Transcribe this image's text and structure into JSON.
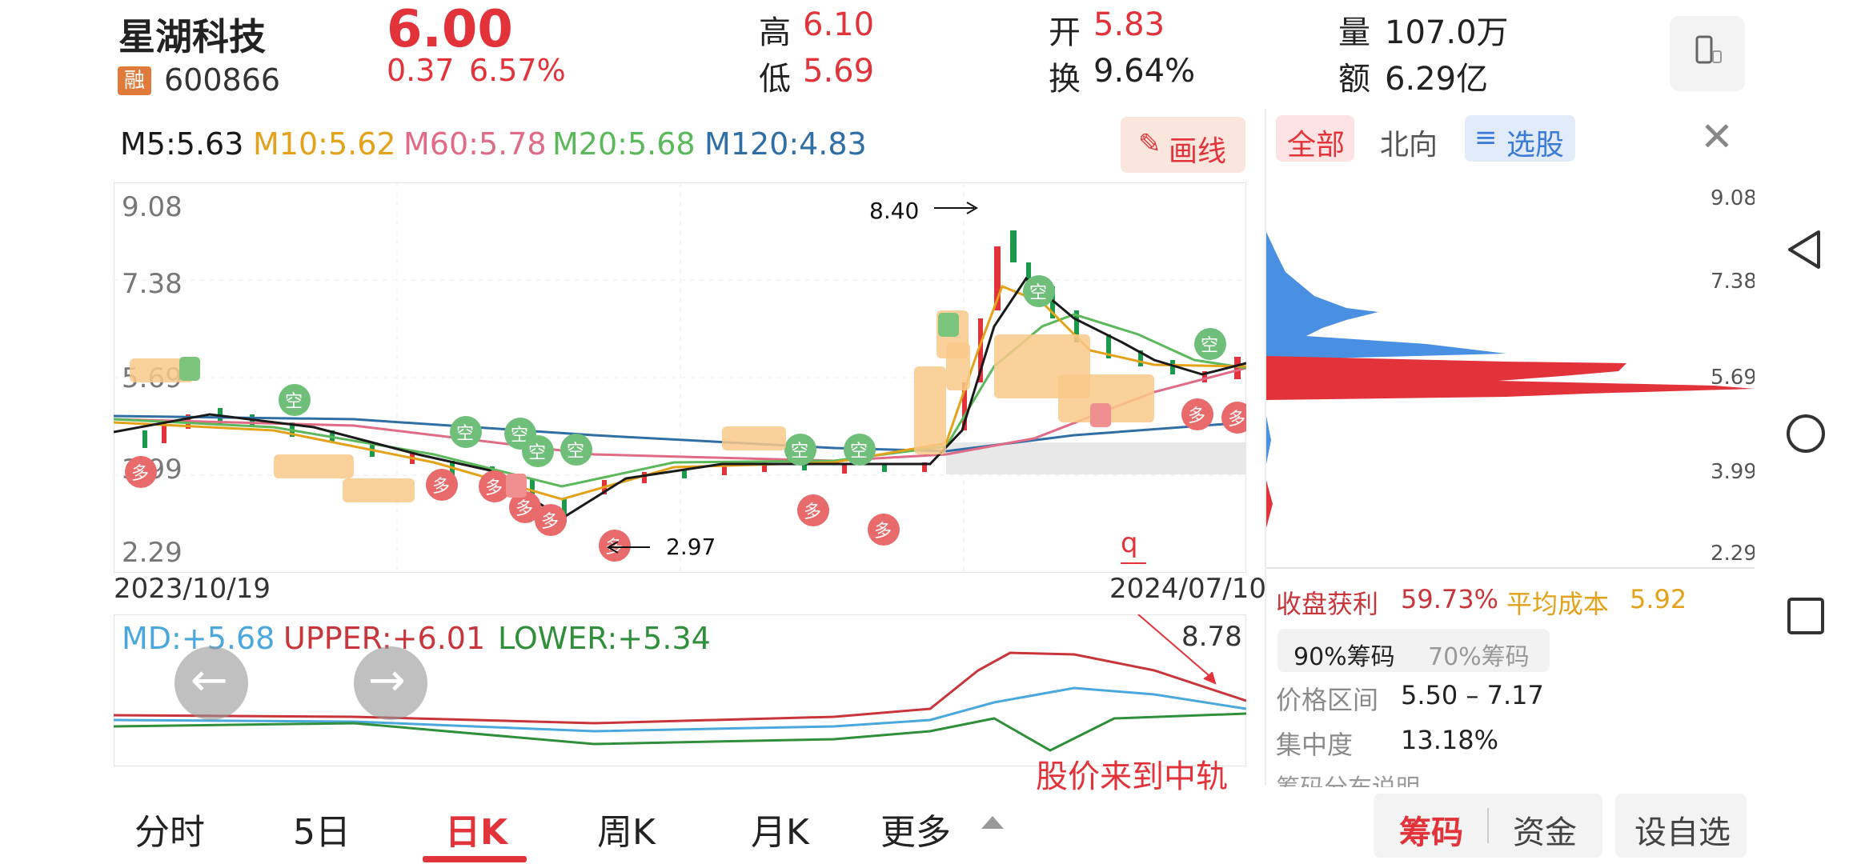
{
  "stock": {
    "name": "星湖科技",
    "badge": "融",
    "code": "600866",
    "price": "6.00",
    "change": "0.37",
    "change_pct": "6.57%"
  },
  "quote": {
    "high_label": "高",
    "high": "6.10",
    "low_label": "低",
    "low": "5.69",
    "open_label": "开",
    "open": "5.83",
    "turnover_label": "换",
    "turnover": "9.64%",
    "volume_label": "量",
    "volume": "107.0万",
    "amount_label": "额",
    "amount": "6.29亿"
  },
  "ma": {
    "m5": "M5:5.63",
    "m10": "M10:5.62",
    "m60": "M60:5.78",
    "m20": "M20:5.68",
    "m120": "M120:4.83"
  },
  "draw_button": "画线",
  "chart": {
    "y_labels": [
      "9.08",
      "7.38",
      "5.69",
      "3.99",
      "2.29"
    ],
    "date_start": "2023/10/19",
    "date_end": "2024/07/10",
    "annot_high": "8.40",
    "annot_low": "2.97",
    "annot_q": "q"
  },
  "boll": {
    "md": "MD:+5.68",
    "upper": "UPPER:+6.01",
    "lower": "LOWER:+5.34",
    "max_label": "8.78",
    "note": "股价来到中轨"
  },
  "right_panel": {
    "tabs": [
      "全部",
      "北向",
      "选股"
    ],
    "y_labels": [
      "9.08",
      "7.38",
      "5.69",
      "3.99",
      "2.29"
    ],
    "profit_label": "收盘获利",
    "profit_value": "59.73%",
    "avg_cost_label": "平均成本",
    "avg_cost_value": "5.92",
    "chip_tabs": [
      "90%筹码",
      "70%筹码"
    ],
    "price_range_label": "价格区间",
    "price_range_value": "5.50 – 7.17",
    "concentration_label": "集中度",
    "concentration_value": "13.18%",
    "explain_label": "筹码分布说明"
  },
  "bottom_tabs": [
    "分时",
    "5日",
    "日K",
    "周K",
    "月K",
    "更多"
  ],
  "bottom_right": {
    "chip": "筹码",
    "fund": "资金",
    "watch": "设自选"
  },
  "chart_data": {
    "type": "candlestick",
    "x_range": [
      "2023/10/19",
      "2024/07/10"
    ],
    "y_ticks": [
      9.08,
      7.38,
      5.69,
      3.99,
      2.29
    ],
    "ylim": [
      2.29,
      9.08
    ],
    "series": [
      {
        "name": "M5",
        "value": 5.63,
        "color": "#1a1a1a"
      },
      {
        "name": "M10",
        "value": 5.62,
        "color": "#e3a21a"
      },
      {
        "name": "M60",
        "value": 5.78,
        "color": "#e06b86"
      },
      {
        "name": "M20",
        "value": 5.68,
        "color": "#5bb85b"
      },
      {
        "name": "M120",
        "value": 4.83,
        "color": "#2f6fa5"
      }
    ],
    "annotations": [
      "8.40",
      "2.97"
    ],
    "boll": {
      "MD": 5.68,
      "UPPER": 6.01,
      "LOWER": 5.34
    }
  },
  "colors": {
    "up": "#e2333a",
    "down": "#1a9a4a",
    "accent_blue": "#3a7bd5",
    "accent_orange": "#e3a21a"
  }
}
